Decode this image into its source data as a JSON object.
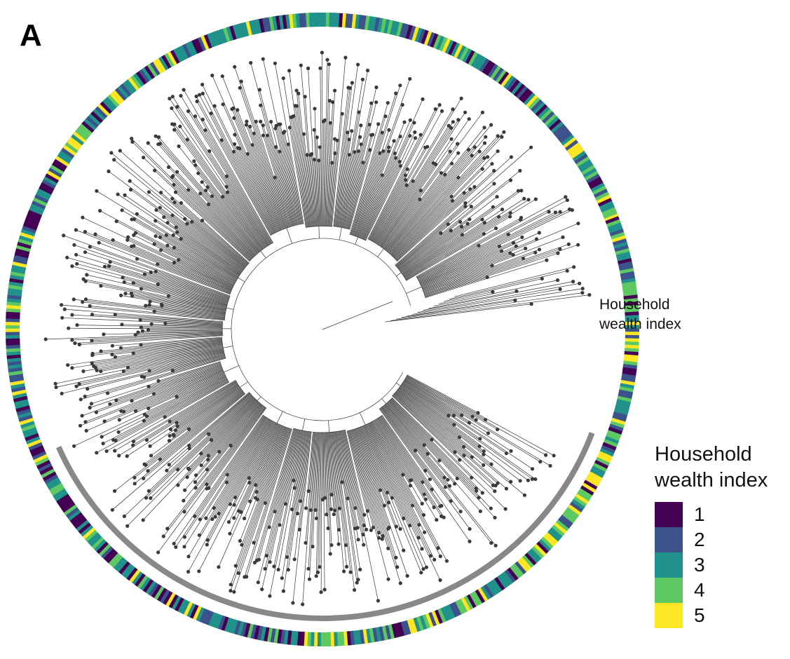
{
  "panel_label": "A",
  "ring_label_line1": "Household",
  "ring_label_line2": "wealth index",
  "legend": {
    "title_line1": "Household",
    "title_line2": "wealth index",
    "items": [
      {
        "value": "1",
        "color": "#440154"
      },
      {
        "value": "2",
        "color": "#3b528b"
      },
      {
        "value": "3",
        "color": "#21918c"
      },
      {
        "value": "4",
        "color": "#5ec962"
      },
      {
        "value": "5",
        "color": "#fde725"
      }
    ]
  },
  "colors": {
    "branch": "#333333",
    "tip_point": "#3a3a3a",
    "highlight_arc": "#888888"
  }
}
